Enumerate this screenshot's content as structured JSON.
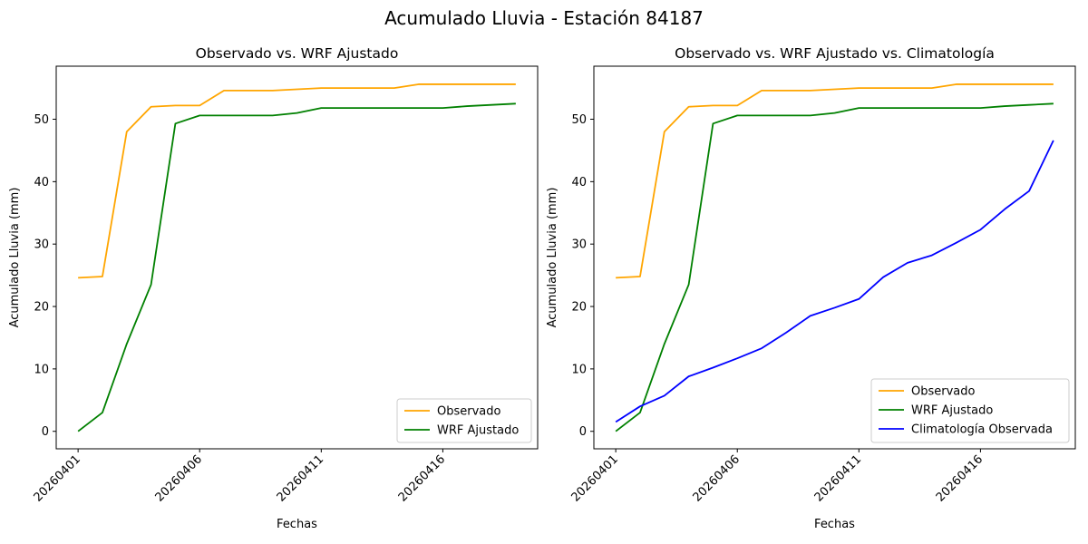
{
  "figure": {
    "suptitle": "Acumulado Lluvia - Estación 84187"
  },
  "colors": {
    "observado": "#ffa500",
    "wrf": "#008000",
    "climatologia": "#0000ff"
  },
  "chart_data": [
    {
      "type": "line",
      "title": "Observado vs. WRF Ajustado",
      "xlabel": "Fechas",
      "ylabel": "Acumulado Lluvia (mm)",
      "x": [
        "20260401",
        "20260402",
        "20260403",
        "20260404",
        "20260405",
        "20260406",
        "20260407",
        "20260408",
        "20260409",
        "20260410",
        "20260411",
        "20260412",
        "20260413",
        "20260414",
        "20260415",
        "20260416",
        "20260417",
        "20260418",
        "20260419"
      ],
      "xticks": [
        "20260401",
        "20260406",
        "20260411",
        "20260416"
      ],
      "yticks": [
        0,
        10,
        20,
        30,
        40,
        50
      ],
      "ylim": [
        -2.8,
        58.5
      ],
      "legend_position": "lower-right",
      "series": [
        {
          "name": "Observado",
          "color_key": "observado",
          "values": [
            24.6,
            24.8,
            48.0,
            52.0,
            52.2,
            52.2,
            54.6,
            54.6,
            54.6,
            54.8,
            55.0,
            55.0,
            55.0,
            55.0,
            55.6,
            55.6,
            55.6,
            55.6,
            55.6
          ]
        },
        {
          "name": "WRF Ajustado",
          "color_key": "wrf",
          "values": [
            0.0,
            3.0,
            14.0,
            23.5,
            49.3,
            50.6,
            50.6,
            50.6,
            50.6,
            51.0,
            51.8,
            51.8,
            51.8,
            51.8,
            51.8,
            51.8,
            52.1,
            52.3,
            52.5
          ]
        }
      ]
    },
    {
      "type": "line",
      "title": "Observado vs. WRF Ajustado vs. Climatología",
      "xlabel": "Fechas",
      "ylabel": "Acumulado Lluvia (mm)",
      "x": [
        "20260401",
        "20260402",
        "20260403",
        "20260404",
        "20260405",
        "20260406",
        "20260407",
        "20260408",
        "20260409",
        "20260410",
        "20260411",
        "20260412",
        "20260413",
        "20260414",
        "20260415",
        "20260416",
        "20260417",
        "20260418",
        "20260419"
      ],
      "xticks": [
        "20260401",
        "20260406",
        "20260411",
        "20260416"
      ],
      "yticks": [
        0,
        10,
        20,
        30,
        40,
        50
      ],
      "ylim": [
        -2.8,
        58.5
      ],
      "legend_position": "lower-right",
      "series": [
        {
          "name": "Observado",
          "color_key": "observado",
          "values": [
            24.6,
            24.8,
            48.0,
            52.0,
            52.2,
            52.2,
            54.6,
            54.6,
            54.6,
            54.8,
            55.0,
            55.0,
            55.0,
            55.0,
            55.6,
            55.6,
            55.6,
            55.6,
            55.6
          ]
        },
        {
          "name": "WRF Ajustado",
          "color_key": "wrf",
          "values": [
            0.0,
            3.0,
            14.0,
            23.5,
            49.3,
            50.6,
            50.6,
            50.6,
            50.6,
            51.0,
            51.8,
            51.8,
            51.8,
            51.8,
            51.8,
            51.8,
            52.1,
            52.3,
            52.5
          ]
        },
        {
          "name": "Climatología Observada",
          "color_key": "climatologia",
          "values": [
            1.5,
            4.0,
            5.7,
            8.8,
            10.2,
            11.7,
            13.3,
            15.8,
            18.5,
            19.8,
            21.2,
            24.7,
            27.0,
            28.2,
            30.2,
            32.3,
            35.6,
            38.5,
            46.6
          ]
        }
      ]
    }
  ]
}
